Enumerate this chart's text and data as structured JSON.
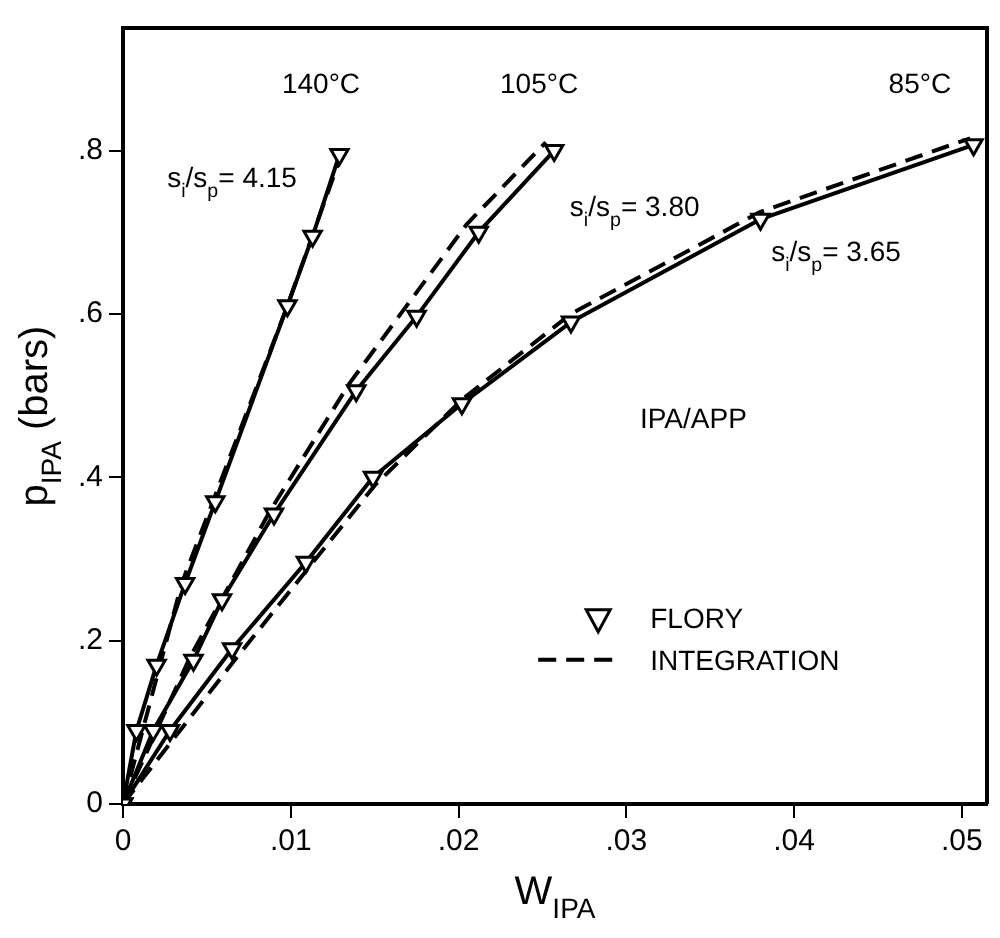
{
  "chart_data": {
    "type": "line",
    "xlabel": "W$_{IPA}$",
    "ylabel": "p$_{IPA}$ (bars)",
    "xlim": [
      0,
      0.0515
    ],
    "ylim": [
      0,
      0.95
    ],
    "xticks": [
      0,
      {
        "value": 0.01,
        "label": ".01"
      },
      {
        "value": 0.02,
        "label": ".02"
      },
      {
        "value": 0.03,
        "label": ".03"
      },
      {
        "value": 0.04,
        "label": ".04"
      },
      {
        "value": 0.05,
        "label": ".05"
      }
    ],
    "yticks": [
      0,
      {
        "value": 0.2,
        "label": ".2"
      },
      {
        "value": 0.4,
        "label": ".4"
      },
      {
        "value": 0.6,
        "label": ".6"
      },
      {
        "value": 0.8,
        "label": ".8"
      }
    ],
    "grid": false,
    "legend": "center right",
    "series": [
      {
        "name": "FLORY",
        "color": "#000000",
        "marker": "triangle",
        "line_style": "solid",
        "x": [
          0,
          0.0008,
          0.002,
          0.0037,
          0.0055,
          0.0098,
          0.0113,
          0.0129
        ],
        "values": [
          0,
          0.09,
          0.17,
          0.27,
          0.37,
          0.61,
          0.695,
          0.795
        ]
      },
      {
        "color": "#000000",
        "marker": "triangle",
        "line_style": "solid",
        "x": [
          0,
          0.0018,
          0.0042,
          0.0059,
          0.009,
          0.0139,
          0.0175,
          0.0212,
          0.0257
        ],
        "values": [
          0,
          0.09,
          0.176,
          0.25,
          0.355,
          0.506,
          0.597,
          0.7,
          0.8
        ]
      },
      {
        "color": "#000000",
        "marker": "triangle",
        "line_style": "solid",
        "x": [
          0,
          0.0028,
          0.0065,
          0.0109,
          0.0149,
          0.0202,
          0.0267,
          0.038,
          0.0507
        ],
        "values": [
          0,
          0.09,
          0.19,
          0.296,
          0.4,
          0.49,
          0.59,
          0.716,
          0.807
        ]
      },
      {
        "name": "INTEGRATION",
        "color": "#000000",
        "marker": "none",
        "line_style": "dashed",
        "x": [
          0,
          0.0035,
          0.0098,
          0.0131
        ],
        "values": [
          0,
          0.27,
          0.61,
          0.8
        ]
      },
      {
        "color": "#000000",
        "marker": "none",
        "line_style": "dashed",
        "x": [
          0,
          0.004,
          0.0088,
          0.0135,
          0.0205,
          0.0252
        ],
        "values": [
          0,
          0.18,
          0.36,
          0.515,
          0.71,
          0.81
        ]
      },
      {
        "color": "#000000",
        "marker": "none",
        "line_style": "dashed",
        "x": [
          0,
          0.0068,
          0.015,
          0.0202,
          0.0267,
          0.038,
          0.0505
        ],
        "values": [
          0,
          0.18,
          0.39,
          0.495,
          0.6,
          0.725,
          0.815
        ]
      }
    ],
    "annotations": [
      "140°C",
      "105°C",
      "85°C",
      "s$_{i}$/s$_{p}$= 4.15",
      "s$_{i}$/s$_{p}$= 3.80",
      "s$_{i}$/s$_{p}$= 3.65",
      "IPA/APP"
    ]
  }
}
